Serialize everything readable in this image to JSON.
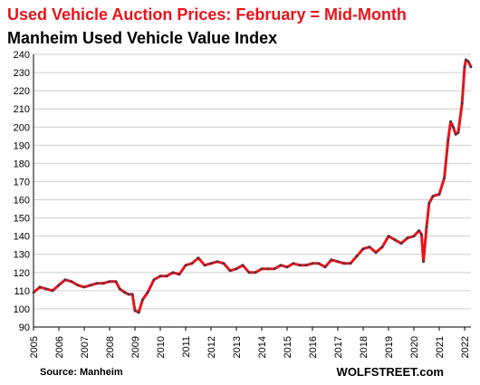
{
  "header": {
    "title": "Used Vehicle Auction Prices: February = Mid-Month",
    "subtitle": "Manheim Used Vehicle Value Index"
  },
  "footer": {
    "source": "Source: Manheim",
    "brand": "WOLFSTREET.com"
  },
  "colors": {
    "line": "#e8141b",
    "marker": "#3a3a50",
    "title": "#e8141b",
    "grid": "#cfcfcf"
  },
  "chart_data": {
    "type": "line",
    "title": "Manheim Used Vehicle Value Index",
    "xlabel": "",
    "ylabel": "",
    "ylim": [
      90,
      240
    ],
    "yticks": [
      90,
      100,
      110,
      120,
      130,
      140,
      150,
      160,
      170,
      180,
      190,
      200,
      210,
      220,
      230,
      240
    ],
    "xlim": [
      2005,
      2022.25
    ],
    "xticks": [
      "2005",
      "2006",
      "2007",
      "2008",
      "2009",
      "2010",
      "2011",
      "2012",
      "2013",
      "2014",
      "2015",
      "2016",
      "2017",
      "2018",
      "2019",
      "2020",
      "2021",
      "2022"
    ],
    "grid": "horizontal",
    "legend": "none",
    "series": [
      {
        "points": [
          [
            2005.0,
            109
          ],
          [
            2005.25,
            112
          ],
          [
            2005.5,
            111
          ],
          [
            2005.75,
            110
          ],
          [
            2006.0,
            113
          ],
          [
            2006.25,
            116
          ],
          [
            2006.5,
            115
          ],
          [
            2006.75,
            113
          ],
          [
            2007.0,
            112
          ],
          [
            2007.25,
            113
          ],
          [
            2007.5,
            114
          ],
          [
            2007.75,
            114
          ],
          [
            2008.0,
            115
          ],
          [
            2008.25,
            115
          ],
          [
            2008.4,
            111
          ],
          [
            2008.6,
            109
          ],
          [
            2008.75,
            108
          ],
          [
            2008.9,
            108
          ],
          [
            2009.0,
            99
          ],
          [
            2009.15,
            98
          ],
          [
            2009.3,
            105
          ],
          [
            2009.5,
            109
          ],
          [
            2009.75,
            116
          ],
          [
            2010.0,
            118
          ],
          [
            2010.25,
            118
          ],
          [
            2010.5,
            120
          ],
          [
            2010.75,
            119
          ],
          [
            2011.0,
            124
          ],
          [
            2011.25,
            125
          ],
          [
            2011.5,
            128
          ],
          [
            2011.75,
            124
          ],
          [
            2012.0,
            125
          ],
          [
            2012.25,
            126
          ],
          [
            2012.5,
            125
          ],
          [
            2012.75,
            121
          ],
          [
            2013.0,
            122
          ],
          [
            2013.25,
            124
          ],
          [
            2013.5,
            120
          ],
          [
            2013.75,
            120
          ],
          [
            2014.0,
            122
          ],
          [
            2014.25,
            122
          ],
          [
            2014.5,
            122
          ],
          [
            2014.75,
            124
          ],
          [
            2015.0,
            123
          ],
          [
            2015.25,
            125
          ],
          [
            2015.5,
            124
          ],
          [
            2015.75,
            124
          ],
          [
            2016.0,
            125
          ],
          [
            2016.25,
            125
          ],
          [
            2016.5,
            123
          ],
          [
            2016.75,
            127
          ],
          [
            2017.0,
            126
          ],
          [
            2017.25,
            125
          ],
          [
            2017.5,
            125
          ],
          [
            2017.75,
            129
          ],
          [
            2018.0,
            133
          ],
          [
            2018.25,
            134
          ],
          [
            2018.5,
            131
          ],
          [
            2018.75,
            134
          ],
          [
            2019.0,
            140
          ],
          [
            2019.25,
            138
          ],
          [
            2019.5,
            136
          ],
          [
            2019.75,
            139
          ],
          [
            2020.0,
            140
          ],
          [
            2020.2,
            143
          ],
          [
            2020.3,
            141
          ],
          [
            2020.38,
            126
          ],
          [
            2020.5,
            145
          ],
          [
            2020.6,
            158
          ],
          [
            2020.75,
            162
          ],
          [
            2021.0,
            163
          ],
          [
            2021.2,
            172
          ],
          [
            2021.35,
            193
          ],
          [
            2021.45,
            203
          ],
          [
            2021.55,
            200
          ],
          [
            2021.65,
            196
          ],
          [
            2021.75,
            197
          ],
          [
            2021.9,
            213
          ],
          [
            2022.0,
            233
          ],
          [
            2022.05,
            237
          ],
          [
            2022.15,
            236
          ],
          [
            2022.25,
            233
          ]
        ]
      }
    ]
  }
}
